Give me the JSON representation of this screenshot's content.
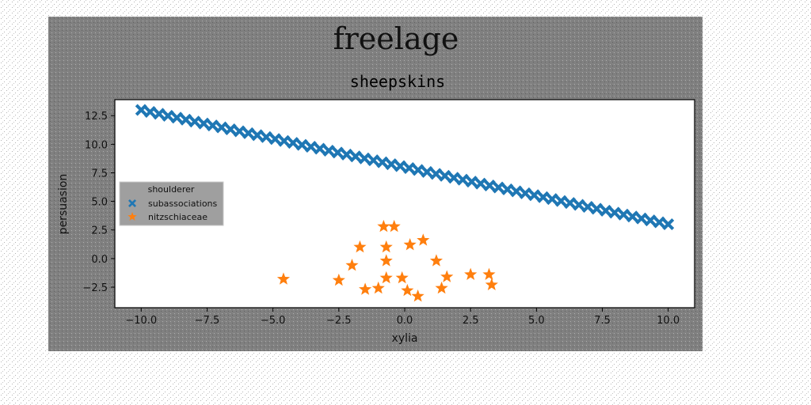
{
  "chart_data": {
    "type": "scatter",
    "suptitle": "freelage",
    "title": "sheepskins",
    "xlabel": "xylia",
    "ylabel": "persuasion",
    "xlim": [
      -11.0,
      11.0
    ],
    "ylim": [
      -4.3,
      13.9
    ],
    "xticks": [
      -10.0,
      -7.5,
      -5.0,
      -2.5,
      0.0,
      2.5,
      5.0,
      7.5,
      10.0
    ],
    "yticks": [
      -2.5,
      0.0,
      2.5,
      5.0,
      7.5,
      10.0,
      12.5
    ],
    "xtick_labels": [
      "−10.0",
      "−7.5",
      "−5.0",
      "−2.5",
      "0.0",
      "2.5",
      "5.0",
      "7.5",
      "10.0"
    ],
    "ytick_labels": [
      "−2.5",
      "0.0",
      "2.5",
      "5.0",
      "7.5",
      "10.0",
      "12.5"
    ],
    "grid": false,
    "legend": {
      "title": "shoulderer",
      "placement": "center-left"
    },
    "series": [
      {
        "name": "subassociations",
        "marker": "X",
        "color": "#1f77b4",
        "line": {
          "x_start": -10.0,
          "x_end": 10.0,
          "y_start": 13.0,
          "y_end": 3.0,
          "count": 60
        }
      },
      {
        "name": "nitzschiaceae",
        "marker": "star",
        "color": "#ff7f0e",
        "points": [
          [
            -4.6,
            -1.8
          ],
          [
            -2.5,
            -1.9
          ],
          [
            -2.0,
            -0.6
          ],
          [
            -1.7,
            1.0
          ],
          [
            -1.5,
            -2.7
          ],
          [
            -1.0,
            -2.6
          ],
          [
            -0.8,
            2.8
          ],
          [
            -0.7,
            1.0
          ],
          [
            -0.7,
            -0.2
          ],
          [
            -0.7,
            -1.7
          ],
          [
            -0.4,
            2.8
          ],
          [
            -0.1,
            -1.7
          ],
          [
            0.1,
            -2.8
          ],
          [
            0.2,
            1.2
          ],
          [
            0.5,
            -3.3
          ],
          [
            0.7,
            1.6
          ],
          [
            1.2,
            -0.2
          ],
          [
            1.4,
            -2.6
          ],
          [
            1.6,
            -1.6
          ],
          [
            2.5,
            -1.4
          ],
          [
            3.2,
            -1.4
          ],
          [
            3.3,
            -2.3
          ]
        ]
      }
    ]
  }
}
